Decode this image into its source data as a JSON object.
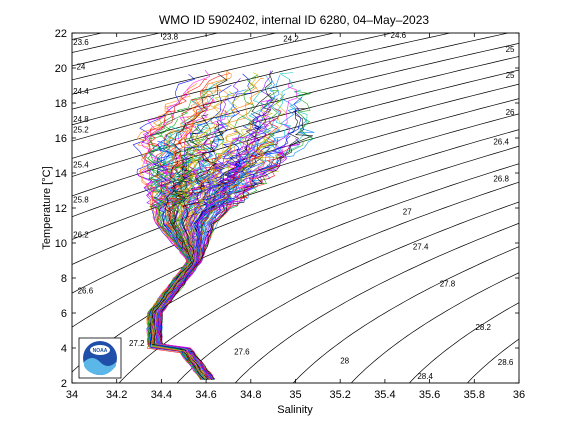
{
  "chart_data": {
    "type": "line",
    "title": "WMO ID 5902402, internal ID 6280, 04–May–2023",
    "xlabel": "Salinity",
    "ylabel": "Temperature [°C]",
    "xlim": [
      34,
      36
    ],
    "ylim": [
      2,
      22
    ],
    "x_ticks": [
      "34",
      "34.2",
      "34.4",
      "34.6",
      "34.8",
      "35",
      "35.2",
      "35.4",
      "35.6",
      "35.8",
      "36"
    ],
    "y_ticks": [
      "2",
      "4",
      "6",
      "8",
      "10",
      "12",
      "14",
      "16",
      "18",
      "20",
      "22"
    ],
    "grid": false,
    "legend": "none",
    "density_isopycnals": {
      "line_color": "#000000",
      "labels": [
        {
          "text": "23.6",
          "s": 34.04,
          "t": 21.5
        },
        {
          "text": "24",
          "s": 34.04,
          "t": 20.1
        },
        {
          "text": "24.4",
          "s": 34.04,
          "t": 18.7
        },
        {
          "text": "24.8",
          "s": 34.04,
          "t": 17.1
        },
        {
          "text": "25.2",
          "s": 34.04,
          "t": 16.5
        },
        {
          "text": "25.4",
          "s": 34.04,
          "t": 14.5
        },
        {
          "text": "25.8",
          "s": 34.04,
          "t": 12.5
        },
        {
          "text": "26.2",
          "s": 34.04,
          "t": 10.5
        },
        {
          "text": "26.6",
          "s": 34.06,
          "t": 7.3
        },
        {
          "text": "23.8",
          "s": 34.44,
          "t": 21.8
        },
        {
          "text": "24.2",
          "s": 34.98,
          "t": 21.7
        },
        {
          "text": "24.6",
          "s": 35.46,
          "t": 21.9
        },
        {
          "text": "25",
          "s": 35.96,
          "t": 21.1
        },
        {
          "text": "25",
          "s": 35.96,
          "t": 19.6
        },
        {
          "text": "26",
          "s": 35.96,
          "t": 17.5
        },
        {
          "text": "26.4",
          "s": 35.92,
          "t": 15.8
        },
        {
          "text": "26.8",
          "s": 35.92,
          "t": 13.7
        },
        {
          "text": "27",
          "s": 35.5,
          "t": 11.8
        },
        {
          "text": "27.4",
          "s": 35.56,
          "t": 9.8
        },
        {
          "text": "27.8",
          "s": 35.68,
          "t": 7.7
        },
        {
          "text": "28.2",
          "s": 35.84,
          "t": 5.2
        },
        {
          "text": "28.6",
          "s": 35.94,
          "t": 3.2
        },
        {
          "text": "28.4",
          "s": 35.58,
          "t": 2.4
        },
        {
          "text": "28",
          "s": 35.22,
          "t": 3.3
        },
        {
          "text": "27.6",
          "s": 34.76,
          "t": 3.8
        },
        {
          "text": "27.2",
          "s": 34.29,
          "t": 4.3
        }
      ]
    },
    "profile_envelope": {
      "description_points_s_t": [
        [
          34.4,
          2.2
        ],
        [
          34.6,
          2.4
        ],
        [
          34.42,
          4.5
        ],
        [
          34.35,
          6.0
        ],
        [
          34.43,
          7.5
        ],
        [
          34.5,
          9.0
        ],
        [
          34.44,
          10.5
        ],
        [
          34.4,
          12.0
        ],
        [
          34.38,
          14.0
        ],
        [
          34.4,
          17.0
        ],
        [
          34.42,
          19.8
        ],
        [
          34.7,
          20.2
        ],
        [
          34.95,
          19.5
        ],
        [
          35.05,
          18.0
        ],
        [
          35.18,
          16.5
        ],
        [
          35.0,
          15.0
        ],
        [
          34.85,
          13.5
        ],
        [
          34.7,
          12.0
        ],
        [
          34.6,
          10.5
        ],
        [
          34.58,
          9.0
        ]
      ]
    },
    "profile_colors": [
      "#0000ff",
      "#ff0000",
      "#00a000",
      "#ff00ff",
      "#00c0c0",
      "#ff8000",
      "#8000ff",
      "#000000",
      "#c0c000",
      "#0080ff"
    ]
  }
}
